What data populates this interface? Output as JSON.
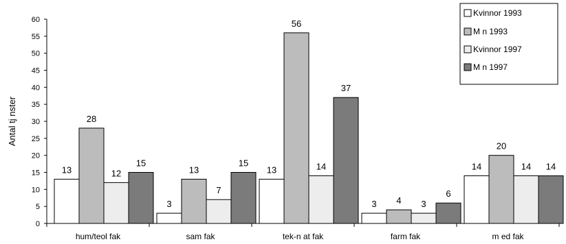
{
  "chart_data": {
    "type": "bar",
    "title": "",
    "xlabel": "",
    "ylabel": "Antal tj nster",
    "ylim": [
      0,
      60
    ],
    "yticks": [
      0,
      5,
      10,
      15,
      20,
      25,
      30,
      35,
      40,
      45,
      50,
      55,
      60
    ],
    "grid": false,
    "legend_position": "top-right",
    "categories": [
      "hum/teol fak",
      "sam fak",
      "tek-n at fak",
      "farm fak",
      "m ed fak"
    ],
    "series": [
      {
        "name": "Kvinnor 1993",
        "color": "#ffffff",
        "values": [
          13,
          3,
          13,
          3,
          14
        ],
        "labels": [
          "13",
          "3",
          "13",
          "3",
          "14"
        ]
      },
      {
        "name": "M n  1993",
        "color": "#bcbcbc",
        "values": [
          28,
          13,
          56,
          4,
          20
        ],
        "labels": [
          "28",
          "13",
          "56",
          "4",
          "20"
        ]
      },
      {
        "name": "Kvinnor 1997",
        "color": "#ededed",
        "values": [
          12,
          7,
          14,
          3,
          14
        ],
        "labels": [
          "12",
          "7",
          "14",
          "3",
          "14"
        ]
      },
      {
        "name": "M n  1997",
        "color": "#7b7b7b",
        "values": [
          15,
          15,
          37,
          6,
          14
        ],
        "labels": [
          "15",
          "15",
          "37",
          "6",
          "14"
        ]
      }
    ]
  }
}
